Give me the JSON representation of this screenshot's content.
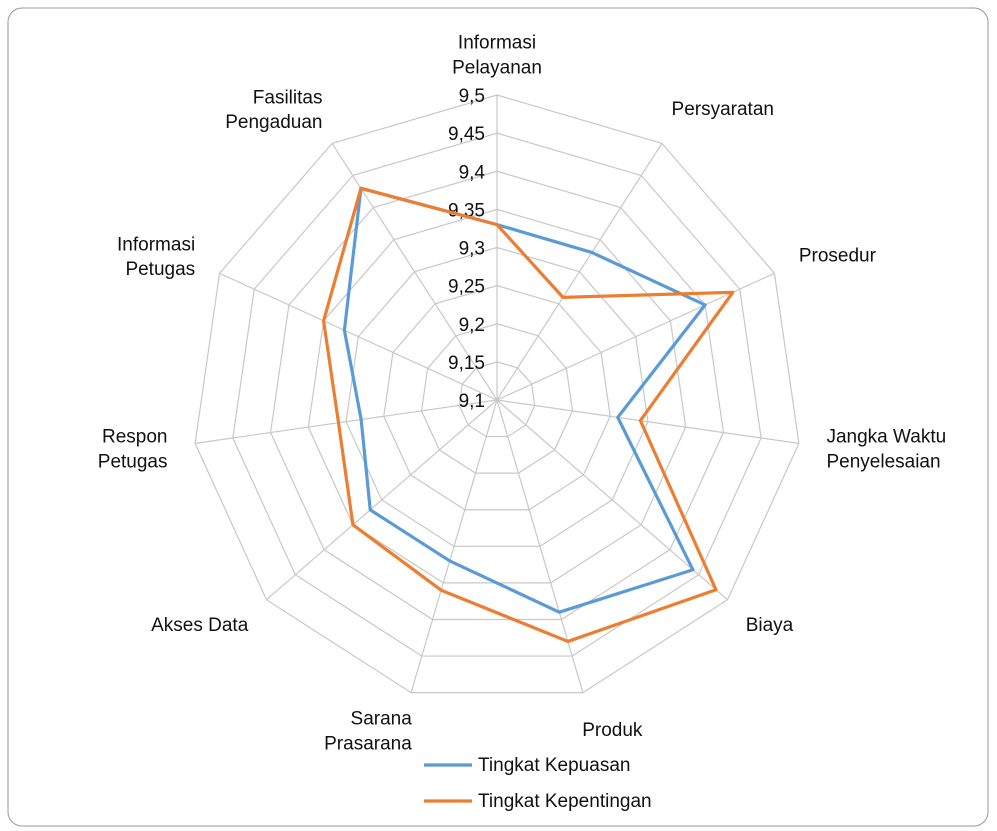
{
  "chart_data": {
    "type": "radar",
    "categories": [
      "Informasi Pelayanan",
      "Persyaratan",
      "Prosedur",
      "Jangka Waktu Penyelesaian",
      "Biaya",
      "Produk",
      "Sarana Prasarana",
      "Akses Data",
      "Respon Petugas",
      "Informasi Petugas",
      "Fasilitas Pengaduan"
    ],
    "series": [
      {
        "name": "Tingkat Kepuasan",
        "color": "#5b9bd5",
        "values": [
          9.33,
          9.33,
          9.4,
          9.26,
          9.44,
          9.39,
          9.32,
          9.32,
          9.28,
          9.32,
          9.43
        ]
      },
      {
        "name": "Tingkat Kepentingan",
        "color": "#ed7d31",
        "values": [
          9.33,
          9.26,
          9.44,
          9.29,
          9.48,
          9.43,
          9.36,
          9.35,
          9.31,
          9.35,
          9.43
        ]
      }
    ],
    "ylim": [
      9.1,
      9.5
    ],
    "yticks": [
      {
        "value": 9.1,
        "label": "9,1"
      },
      {
        "value": 9.15,
        "label": "9,15"
      },
      {
        "value": 9.2,
        "label": "9,2"
      },
      {
        "value": 9.25,
        "label": "9,25"
      },
      {
        "value": 9.3,
        "label": "9,3"
      },
      {
        "value": 9.35,
        "label": "9,35"
      },
      {
        "value": 9.4,
        "label": "9,4"
      },
      {
        "value": 9.45,
        "label": "9,45"
      },
      {
        "value": 9.5,
        "label": "9,5"
      }
    ],
    "grid": true,
    "legend": "bottom"
  }
}
